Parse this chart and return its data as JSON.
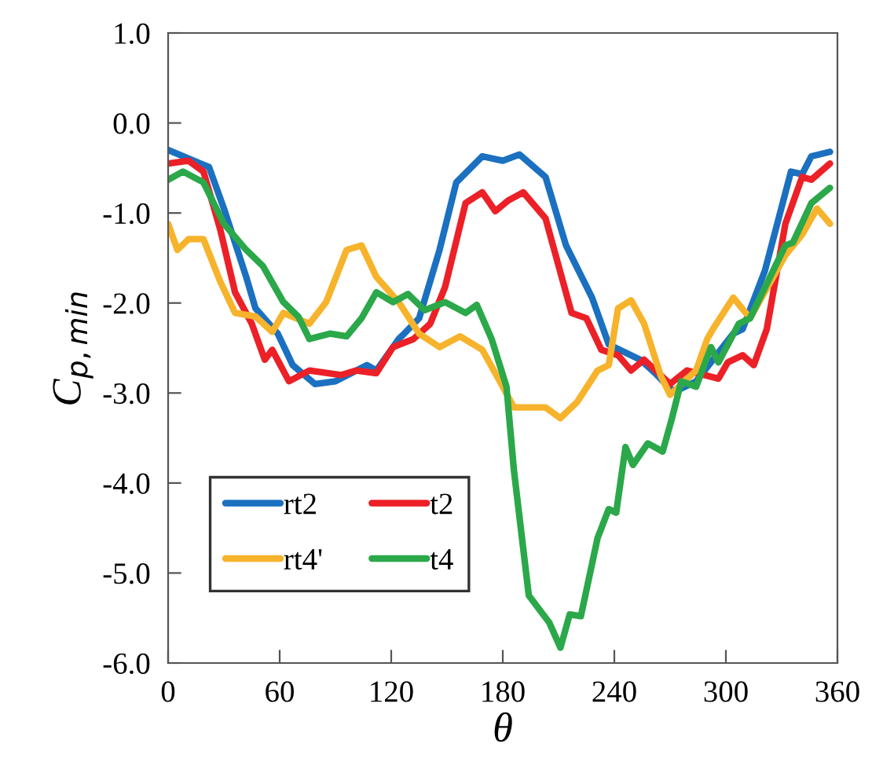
{
  "chart_data": {
    "type": "line",
    "xlabel": "θ",
    "ylabel": "C$_{p,min}$",
    "xlim": [
      0,
      360
    ],
    "ylim": [
      -6.0,
      1.0
    ],
    "xticks": [
      0,
      60,
      120,
      180,
      240,
      300,
      360
    ],
    "yticks": [
      {
        "value": -6,
        "label": "-6.0"
      },
      {
        "value": -5,
        "label": "-5.0"
      },
      {
        "value": -4,
        "label": "-4.0"
      },
      {
        "value": -3,
        "label": "-3.0"
      },
      {
        "value": -2,
        "label": "-2.0"
      },
      {
        "value": -1,
        "label": "-1.0"
      },
      {
        "value": 0,
        "label": "0.0"
      },
      {
        "value": 1,
        "label": "1.0"
      }
    ],
    "grid": false,
    "legend": "bottom left",
    "marker": "none",
    "line_style": "solid",
    "series": [
      {
        "name": "rt2",
        "color": "#1b70c0",
        "x": [
          0,
          22,
          30,
          42,
          47,
          59,
          67,
          79,
          90,
          107,
          112,
          124,
          127,
          135,
          146,
          155,
          169,
          180,
          189,
          203,
          214,
          228,
          237,
          254,
          262,
          270,
          273,
          284,
          304,
          309,
          321,
          335,
          341,
          346,
          356
        ],
        "values": [
          -0.3,
          -0.49,
          -0.95,
          -1.71,
          -2.06,
          -2.34,
          -2.69,
          -2.9,
          -2.87,
          -2.69,
          -2.75,
          -2.4,
          -2.34,
          -2.17,
          -1.41,
          -0.66,
          -0.37,
          -0.42,
          -0.35,
          -0.6,
          -1.36,
          -1.94,
          -2.46,
          -2.63,
          -2.78,
          -2.95,
          -2.98,
          -2.87,
          -2.34,
          -2.29,
          -1.64,
          -0.54,
          -0.57,
          -0.37,
          -0.32
        ]
      },
      {
        "name": "t2",
        "color": "#ec2027",
        "x": [
          0,
          11,
          19,
          28,
          36,
          45,
          52,
          56,
          65,
          76,
          93,
          101,
          112,
          121,
          132,
          141,
          149,
          160,
          169,
          176,
          183,
          191,
          203,
          217,
          225,
          233,
          242,
          249,
          256,
          270,
          279,
          296,
          301,
          309,
          315,
          322,
          332,
          341,
          346,
          356
        ],
        "values": [
          -0.45,
          -0.42,
          -0.54,
          -1.18,
          -1.88,
          -2.23,
          -2.63,
          -2.52,
          -2.87,
          -2.75,
          -2.8,
          -2.75,
          -2.78,
          -2.49,
          -2.4,
          -2.23,
          -1.82,
          -0.89,
          -0.77,
          -0.98,
          -0.86,
          -0.77,
          -1.06,
          -2.11,
          -2.17,
          -2.52,
          -2.58,
          -2.75,
          -2.63,
          -2.9,
          -2.75,
          -2.84,
          -2.66,
          -2.58,
          -2.69,
          -2.29,
          -1.12,
          -0.6,
          -0.63,
          -0.45
        ]
      },
      {
        "name": "rt4'",
        "color": "#f7b32b",
        "x": [
          0,
          5,
          11,
          19,
          28,
          36,
          47,
          56,
          62,
          76,
          85,
          96,
          104,
          112,
          124,
          135,
          146,
          157,
          169,
          180,
          186,
          203,
          211,
          220,
          231,
          237,
          242,
          249,
          256,
          265,
          270,
          284,
          290,
          293,
          304,
          313,
          332,
          341,
          349,
          356
        ],
        "values": [
          -1.12,
          -1.41,
          -1.29,
          -1.29,
          -1.76,
          -2.11,
          -2.15,
          -2.32,
          -2.11,
          -2.23,
          -1.99,
          -1.41,
          -1.36,
          -1.71,
          -1.99,
          -2.34,
          -2.49,
          -2.37,
          -2.52,
          -2.93,
          -3.16,
          -3.16,
          -3.28,
          -3.1,
          -2.75,
          -2.69,
          -2.06,
          -1.97,
          -2.23,
          -2.81,
          -3.02,
          -2.75,
          -2.4,
          -2.29,
          -1.94,
          -2.17,
          -1.47,
          -1.24,
          -0.95,
          -1.12
        ]
      },
      {
        "name": "t4",
        "color": "#2ba84a",
        "x": [
          0,
          8,
          19,
          30,
          42,
          51,
          62,
          70,
          76,
          87,
          96,
          104,
          112,
          121,
          129,
          138,
          149,
          160,
          166,
          174,
          182,
          186,
          194,
          205,
          211,
          216,
          222,
          231,
          237,
          241,
          246,
          250,
          258,
          266,
          271,
          276,
          284,
          292,
          296,
          307,
          313,
          332,
          336,
          346,
          356
        ],
        "values": [
          -0.63,
          -0.54,
          -0.66,
          -1.12,
          -1.41,
          -1.59,
          -1.99,
          -2.15,
          -2.4,
          -2.34,
          -2.37,
          -2.17,
          -1.88,
          -1.99,
          -1.9,
          -2.08,
          -1.99,
          -2.11,
          -2.02,
          -2.4,
          -2.93,
          -3.86,
          -5.25,
          -5.55,
          -5.83,
          -5.46,
          -5.48,
          -4.61,
          -4.29,
          -4.33,
          -3.6,
          -3.8,
          -3.56,
          -3.65,
          -3.28,
          -2.87,
          -2.93,
          -2.49,
          -2.66,
          -2.23,
          -2.17,
          -1.36,
          -1.33,
          -0.89,
          -0.72
        ]
      }
    ]
  }
}
